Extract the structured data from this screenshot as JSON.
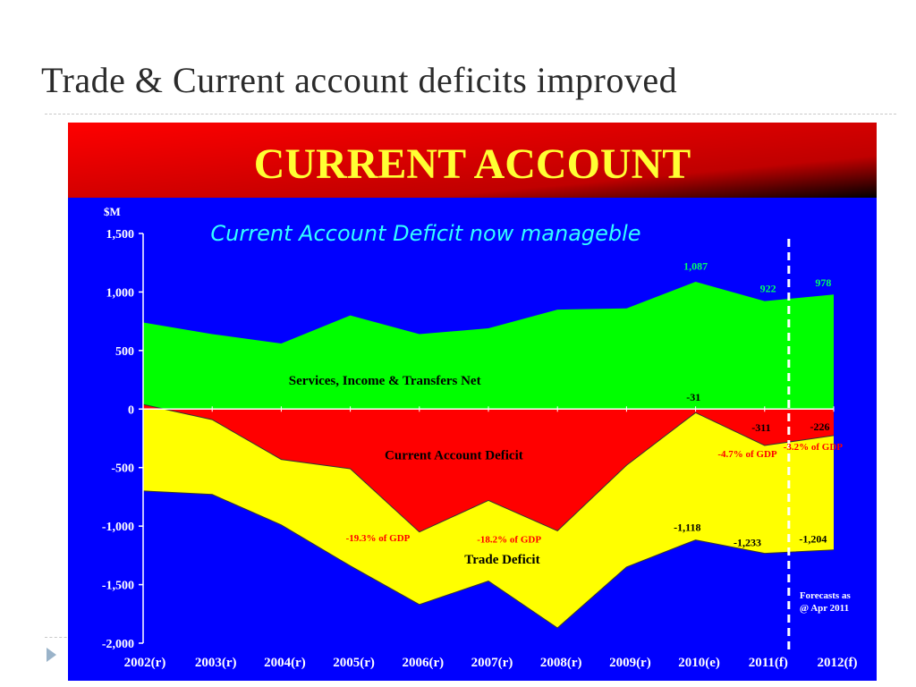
{
  "slide": {
    "title": "Trade & Current account deficits improved"
  },
  "colors": {
    "banner_gradient": [
      "#ff0000",
      "#000000"
    ],
    "banner_text": "#ffff33",
    "plot_background": "#0000ff",
    "services_fill": "#00ff00",
    "deficit_fill": "#ff0000",
    "trade_fill": "#ffff00",
    "subtitle_text": "#33ffff",
    "axis_text": "#ffffff",
    "label_red": "#ff0000",
    "label_black": "#000000",
    "label_green": "#00ff66",
    "bullet": "#9ab3c9"
  },
  "chart_data": {
    "type": "area",
    "banner_title": "CURRENT ACCOUNT",
    "subtitle": "Current Account Deficit now manageble",
    "ylabel": "$M",
    "ylim": [
      -2000,
      1500
    ],
    "yticks": [
      1500,
      1000,
      500,
      0,
      -500,
      -1000,
      -1500,
      -2000
    ],
    "ytick_labels": [
      "1,500",
      "1,000",
      "500",
      "0",
      "-500",
      "-1,000",
      "-1,500",
      "-2,000"
    ],
    "categories": [
      "2002(r)",
      "2003(r)",
      "2004(r)",
      "2005(r)",
      "2006(r)",
      "2007(r)",
      "2008(r)",
      "2009(r)",
      "2010(e)",
      "2011(f)",
      "2012(f)"
    ],
    "series": [
      {
        "name": "Services, Income & Transfers Net",
        "color": "#00ff00",
        "values": [
          740,
          640,
          560,
          800,
          640,
          690,
          850,
          860,
          1087,
          922,
          978
        ]
      },
      {
        "name": "Current Account Deficit",
        "color": "#ff0000",
        "values": [
          40,
          -90,
          -430,
          -510,
          -1050,
          -780,
          -1040,
          -480,
          -31,
          -311,
          -226
        ]
      },
      {
        "name": "Trade Deficit",
        "color": "#ffff00",
        "values": [
          -700,
          -730,
          -990,
          -1340,
          -1670,
          -1470,
          -1870,
          -1350,
          -1118,
          -1233,
          -1204
        ]
      }
    ],
    "area_labels": [
      {
        "text": "Services, Income & Transfers Net",
        "x": 3.5,
        "y": 210
      },
      {
        "text": "Current Account Deficit",
        "x": 4.5,
        "y": -430
      },
      {
        "text": "Trade Deficit",
        "x": 5.2,
        "y": -1320
      }
    ],
    "value_labels": [
      {
        "text": "1,087",
        "x": 8,
        "y": 1190,
        "color": "#00ff66"
      },
      {
        "text": "922",
        "x": 9.05,
        "y": 1000,
        "color": "#00ff66"
      },
      {
        "text": "978",
        "x": 9.85,
        "y": 1050,
        "color": "#00ff66"
      },
      {
        "text": "-31",
        "x": 7.97,
        "y": 70,
        "color": "#000000"
      },
      {
        "text": "-311",
        "x": 8.95,
        "y": -190,
        "color": "#000000"
      },
      {
        "text": "-226",
        "x": 9.8,
        "y": -180,
        "color": "#000000"
      },
      {
        "text": "-1,118",
        "x": 7.88,
        "y": -1040,
        "color": "#000000"
      },
      {
        "text": "-1,233",
        "x": 8.75,
        "y": -1170,
        "color": "#000000"
      },
      {
        "text": "-1,204",
        "x": 9.7,
        "y": -1140,
        "color": "#000000"
      }
    ],
    "gdp_labels": [
      {
        "text": "-19.3% of GDP",
        "x": 3.4,
        "y": -1130
      },
      {
        "text": "-18.2% of GDP",
        "x": 5.3,
        "y": -1140
      },
      {
        "text": "-4.7% of GDP",
        "x": 8.75,
        "y": -410
      },
      {
        "text": "-3.2% of GDP",
        "x": 9.7,
        "y": -350
      }
    ],
    "forecast_divider_x": 9.35,
    "forecast_note": [
      "Forecasts as",
      "@ Apr 2011"
    ],
    "grid": false,
    "legend": "none"
  }
}
